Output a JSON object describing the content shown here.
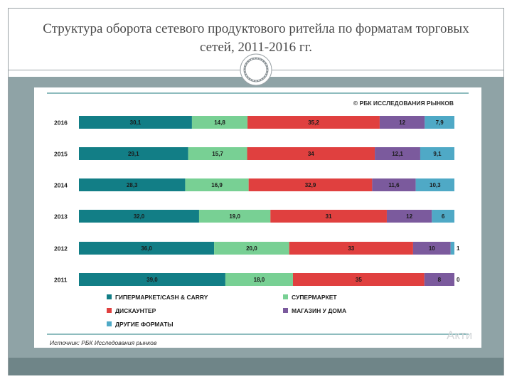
{
  "slide": {
    "title": "Структура оборота сетевого продуктового ритейла по форматам торговых сетей, 2011-2016 гг.",
    "watermark": "Акти"
  },
  "colors": {
    "hyper": "#127e86",
    "super": "#78d094",
    "discount": "#e0403f",
    "home": "#7b5a9d",
    "other": "#4fa9c6",
    "band": "#8fa3a6"
  },
  "chart_data": {
    "type": "bar",
    "orientation": "horizontal-stacked",
    "copyright": "© РБК ИССЛЕДОВАНИЯ РЫНКОВ",
    "source": "Источник: РБК Исследования рынков",
    "categories": [
      "2016",
      "2015",
      "2014",
      "2013",
      "2012",
      "2011"
    ],
    "series": [
      {
        "name": "ГИПЕРМАРКЕТ/CASH & CARRY",
        "key": "hyper",
        "values": [
          30.1,
          29.1,
          28.3,
          32.0,
          36.0,
          39.0
        ],
        "labels": [
          "30,1",
          "29,1",
          "28,3",
          "32,0",
          "36,0",
          "39,0"
        ]
      },
      {
        "name": "СУПЕРМАРКЕТ",
        "key": "super",
        "values": [
          14.8,
          15.7,
          16.9,
          19.0,
          20.0,
          18.0
        ],
        "labels": [
          "14,8",
          "15,7",
          "16,9",
          "19,0",
          "20,0",
          "18,0"
        ]
      },
      {
        "name": "ДИСКАУНТЕР",
        "key": "discount",
        "values": [
          35.2,
          34,
          32.9,
          31,
          33,
          35
        ],
        "labels": [
          "35,2",
          "34",
          "32,9",
          "31",
          "33",
          "35"
        ]
      },
      {
        "name": "МАГАЗИН У ДОМА",
        "key": "home",
        "values": [
          12,
          12.1,
          11.6,
          12,
          10,
          8
        ],
        "labels": [
          "12",
          "12,1",
          "11,6",
          "12",
          "10",
          "8"
        ]
      },
      {
        "name": "ДРУГИЕ ФОРМАТЫ",
        "key": "other",
        "values": [
          7.9,
          9.1,
          10.3,
          6,
          1,
          0
        ],
        "labels": [
          "7,9",
          "9,1",
          "10,3",
          "6",
          "1",
          "0"
        ]
      }
    ],
    "xlim": [
      0,
      100
    ],
    "legend": "bottom"
  }
}
